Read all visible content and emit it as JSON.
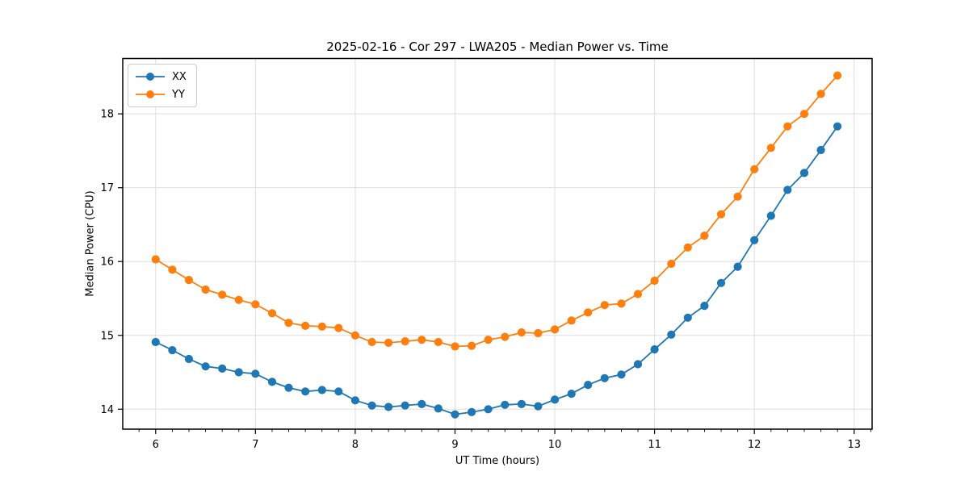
{
  "chart_data": {
    "type": "line",
    "title": "2025-02-16 - Cor 297 - LWA205 - Median Power vs. Time",
    "xlabel": "UT Time (hours)",
    "ylabel": "Median Power (CPU)",
    "xlim": [
      5.67,
      13.18
    ],
    "ylim": [
      13.73,
      18.75
    ],
    "xticks": [
      6,
      7,
      8,
      9,
      10,
      11,
      12,
      13
    ],
    "yticks": [
      14,
      15,
      16,
      17,
      18
    ],
    "x_minor_step": 0.16667,
    "grid": true,
    "grid_color": "#dedede",
    "axis_color": "#000000",
    "background": "#ffffff",
    "legend_position": "upper-left",
    "x": [
      6.0,
      6.167,
      6.333,
      6.5,
      6.667,
      6.833,
      7.0,
      7.167,
      7.333,
      7.5,
      7.667,
      7.833,
      8.0,
      8.167,
      8.333,
      8.5,
      8.667,
      8.833,
      9.0,
      9.167,
      9.333,
      9.5,
      9.667,
      9.833,
      10.0,
      10.167,
      10.333,
      10.5,
      10.667,
      10.833,
      11.0,
      11.167,
      11.333,
      11.5,
      11.667,
      11.833,
      12.0,
      12.167,
      12.333,
      12.5,
      12.667,
      12.833
    ],
    "series": [
      {
        "name": "XX",
        "color": "#1f77b4",
        "values": [
          14.91,
          14.8,
          14.68,
          14.58,
          14.55,
          14.5,
          14.48,
          14.37,
          14.29,
          14.24,
          14.26,
          14.24,
          14.12,
          14.05,
          14.03,
          14.05,
          14.07,
          14.01,
          13.93,
          13.96,
          14.0,
          14.06,
          14.07,
          14.04,
          14.13,
          14.21,
          14.33,
          14.42,
          14.47,
          14.61,
          14.81,
          15.01,
          15.24,
          15.4,
          15.71,
          15.93,
          16.29,
          16.62,
          16.97,
          17.2,
          17.51,
          17.83
        ]
      },
      {
        "name": "YY",
        "color": "#ff7f0e",
        "values": [
          16.03,
          15.89,
          15.75,
          15.62,
          15.55,
          15.48,
          15.42,
          15.3,
          15.17,
          15.13,
          15.12,
          15.1,
          15.0,
          14.91,
          14.9,
          14.92,
          14.94,
          14.91,
          14.85,
          14.86,
          14.94,
          14.98,
          15.04,
          15.03,
          15.08,
          15.2,
          15.31,
          15.41,
          15.43,
          15.56,
          15.74,
          15.97,
          16.19,
          16.35,
          16.64,
          16.88,
          17.25,
          17.54,
          17.83,
          18.0,
          18.27,
          18.52
        ]
      }
    ]
  }
}
